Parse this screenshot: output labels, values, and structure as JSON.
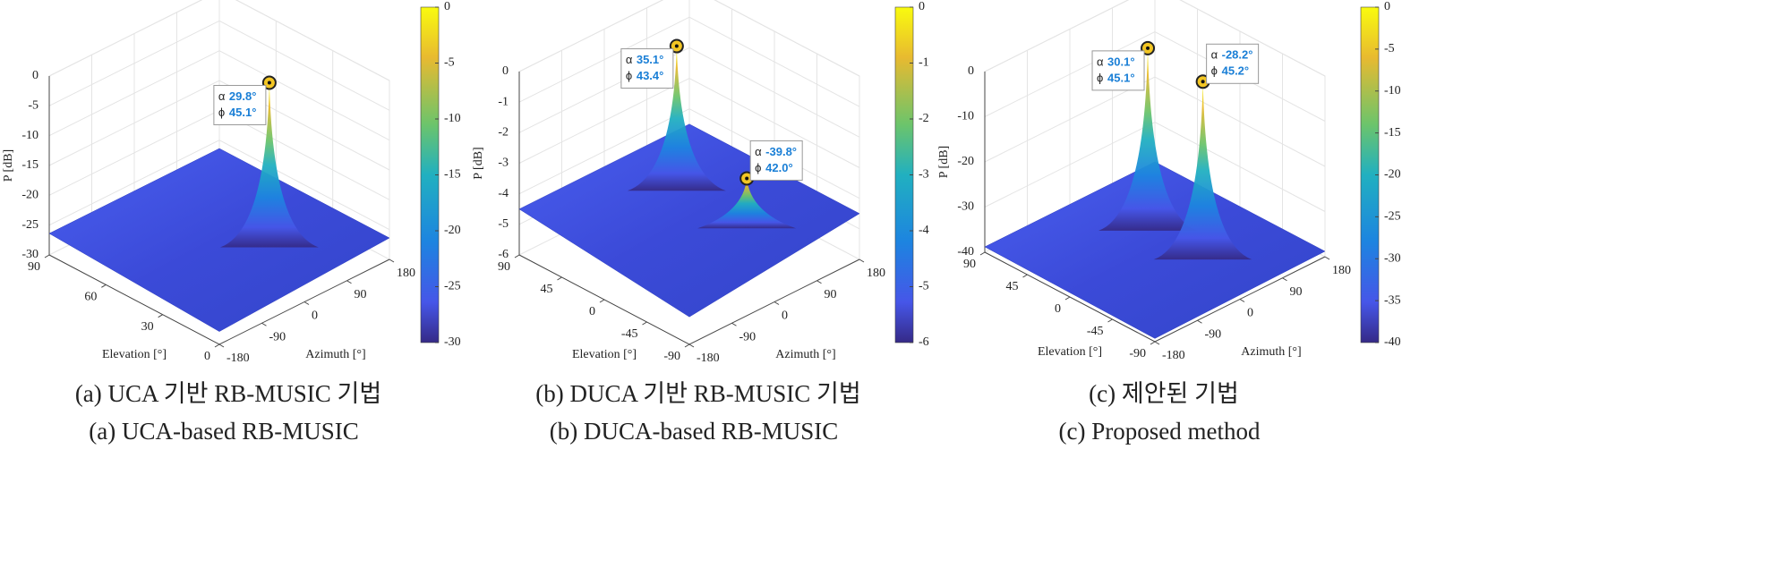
{
  "chart_data": [
    {
      "type": "surface",
      "zlabel": "P [dB]",
      "xlabel": "Elevation [°]",
      "ylabel": "Azimuth [°]",
      "xlim": [
        0,
        90
      ],
      "xticks": [
        0,
        30,
        60,
        90
      ],
      "ylim": [
        -180,
        180
      ],
      "yticks": [
        -180,
        -90,
        0,
        90,
        180
      ],
      "zlim": [
        -30,
        0
      ],
      "zticks": [
        -30,
        -25,
        -20,
        -15,
        -10,
        -5,
        0
      ],
      "clim": [
        -30,
        0
      ],
      "cticks": [
        -30,
        -25,
        -20,
        -15,
        -10,
        -5,
        0
      ],
      "datatip_symbols": [
        "α",
        "ϕ"
      ],
      "peaks": {
        "alpha": [
          29.8
        ],
        "alpha_labels": [
          "29.8°"
        ],
        "phi": [
          45.1
        ],
        "phi_labels": [
          "45.1°"
        ],
        "z": [
          0
        ]
      },
      "caption": [
        "(a) UCA 기반 RB-MUSIC 기법",
        "(a) UCA-based RB-MUSIC"
      ]
    },
    {
      "type": "surface",
      "zlabel": "P [dB]",
      "xlabel": "Elevation [°]",
      "ylabel": "Azimuth [°]",
      "xlim": [
        -90,
        90
      ],
      "xticks": [
        -90,
        -45,
        0,
        45,
        90
      ],
      "ylim": [
        -180,
        180
      ],
      "yticks": [
        -180,
        -90,
        0,
        90,
        180
      ],
      "zlim": [
        -6,
        0
      ],
      "zticks": [
        -6,
        -5,
        -4,
        -3,
        -2,
        -1,
        0
      ],
      "clim": [
        -6,
        0
      ],
      "cticks": [
        -6,
        -5,
        -4,
        -3,
        -2,
        -1,
        0
      ],
      "datatip_symbols": [
        "α",
        "ϕ"
      ],
      "peaks": {
        "alpha": [
          35.1,
          -39.8
        ],
        "alpha_labels": [
          "35.1°",
          "-39.8°"
        ],
        "phi": [
          43.4,
          42.0
        ],
        "phi_labels": [
          "43.4°",
          "42.0°"
        ],
        "z": [
          0,
          -3.1
        ]
      },
      "caption": [
        "(b) DUCA 기반 RB-MUSIC 기법",
        "(b) DUCA-based RB-MUSIC"
      ]
    },
    {
      "type": "surface",
      "zlabel": "P [dB]",
      "xlabel": "Elevation [°]",
      "ylabel": "Azimuth [°]",
      "xlim": [
        -90,
        90
      ],
      "xticks": [
        -90,
        -45,
        0,
        45,
        90
      ],
      "ylim": [
        -180,
        180
      ],
      "yticks": [
        -180,
        -90,
        0,
        90,
        180
      ],
      "zlim": [
        -40,
        0
      ],
      "zticks": [
        -40,
        -30,
        -20,
        -10,
        0
      ],
      "clim": [
        -40,
        0
      ],
      "cticks": [
        -40,
        -35,
        -30,
        -25,
        -20,
        -15,
        -10,
        -5,
        0
      ],
      "datatip_symbols": [
        "α",
        "ϕ"
      ],
      "peaks": {
        "alpha": [
          30.1,
          -28.2
        ],
        "alpha_labels": [
          "30.1°",
          "-28.2°"
        ],
        "phi": [
          45.1,
          45.2
        ],
        "phi_labels": [
          "45.1°",
          "45.2°"
        ],
        "z": [
          0,
          -1
        ]
      },
      "caption": [
        "(c) 제안된 기법",
        "(c) Proposed method"
      ]
    }
  ]
}
